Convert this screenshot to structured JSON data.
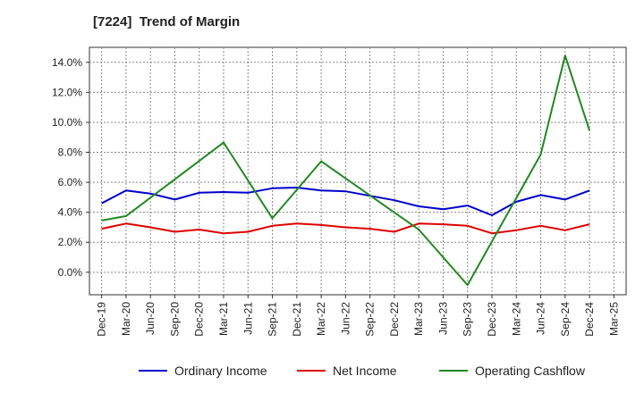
{
  "chart_data": {
    "type": "line",
    "title": "[7224]  Trend of Margin",
    "xlabel": "",
    "ylabel": "",
    "categories": [
      "Dec-19",
      "Mar-20",
      "Jun-20",
      "Sep-20",
      "Dec-20",
      "Mar-21",
      "Jun-21",
      "Sep-21",
      "Dec-21",
      "Mar-22",
      "Jun-22",
      "Sep-22",
      "Dec-22",
      "Mar-23",
      "Jun-23",
      "Sep-23",
      "Dec-23",
      "Mar-24",
      "Jun-24",
      "Sep-24",
      "Dec-24",
      "Mar-25"
    ],
    "ylim": [
      -1.5,
      15.0
    ],
    "yticks": [
      0,
      2,
      4,
      6,
      8,
      10,
      12,
      14
    ],
    "ytick_labels": [
      "0.0%",
      "2.0%",
      "4.0%",
      "6.0%",
      "8.0%",
      "10.0%",
      "12.0%",
      "14.0%"
    ],
    "grid": true,
    "legend_position": "bottom",
    "series": [
      {
        "name": "Ordinary Income",
        "color": "#0000cc",
        "values": [
          4.6,
          5.45,
          5.25,
          4.85,
          5.3,
          5.35,
          5.3,
          5.6,
          5.65,
          5.45,
          5.4,
          5.1,
          4.8,
          4.4,
          4.2,
          4.45,
          3.8,
          4.7,
          5.15,
          4.85,
          5.45,
          null
        ]
      },
      {
        "name": "Net Income",
        "color": "#dd0000",
        "values": [
          2.9,
          3.25,
          3.0,
          2.7,
          2.85,
          2.6,
          2.7,
          3.1,
          3.25,
          3.15,
          3.0,
          2.9,
          2.7,
          3.25,
          3.2,
          3.1,
          2.6,
          2.8,
          3.1,
          2.8,
          3.2,
          null
        ]
      },
      {
        "name": "Operating Cashflow",
        "color": "#228822",
        "values": [
          3.45,
          3.75,
          null,
          null,
          null,
          8.65,
          null,
          3.6,
          null,
          7.4,
          null,
          null,
          null,
          2.85,
          null,
          -0.85,
          null,
          null,
          7.85,
          14.45,
          9.45,
          null
        ]
      }
    ]
  }
}
